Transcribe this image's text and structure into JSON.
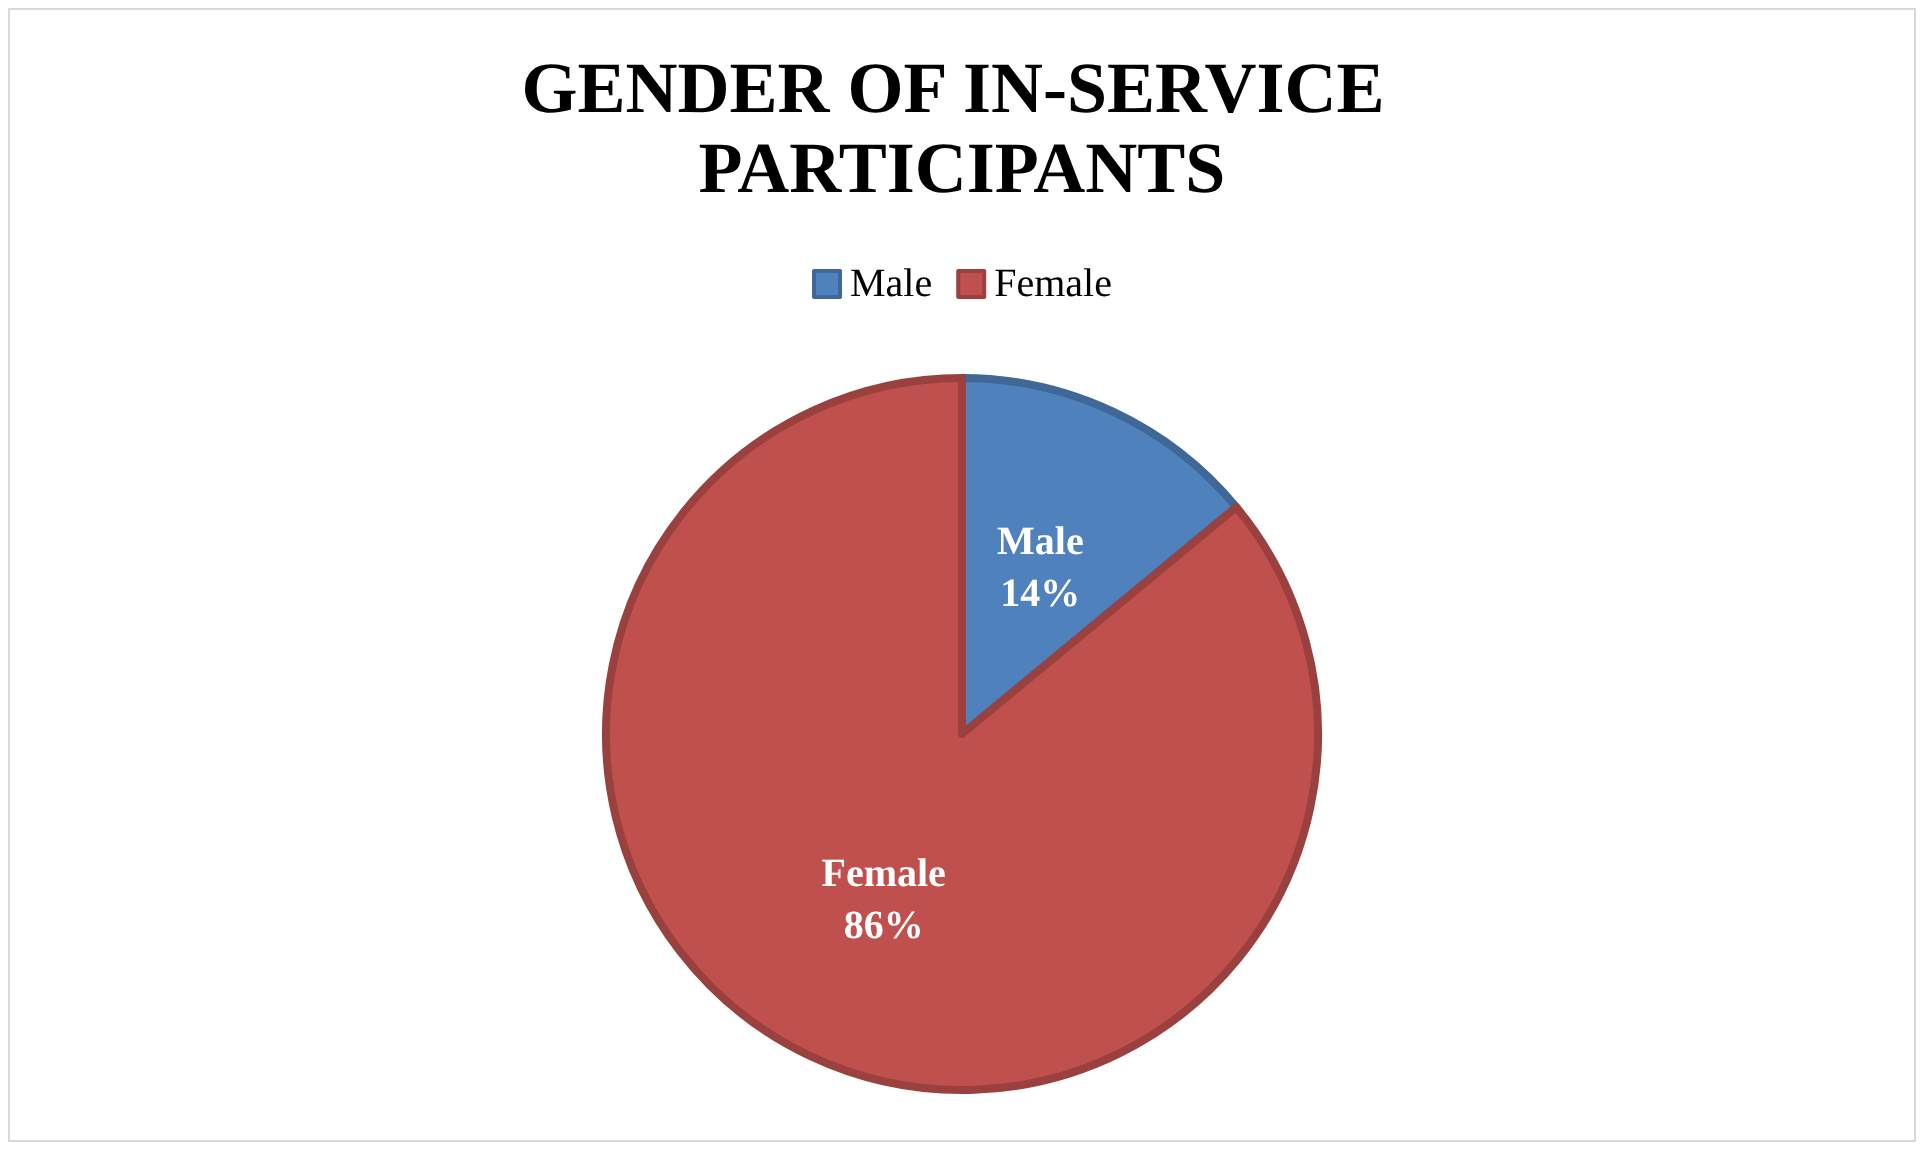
{
  "chart_data": {
    "type": "pie",
    "title": "GENDER OF IN-SERVICE PARTICIPANTS",
    "categories": [
      "Male",
      "Female"
    ],
    "values": [
      14,
      86
    ],
    "colors": [
      "#4f81bd",
      "#c0504d"
    ],
    "value_labels": [
      "14%",
      "86%"
    ],
    "legend": "top"
  }
}
